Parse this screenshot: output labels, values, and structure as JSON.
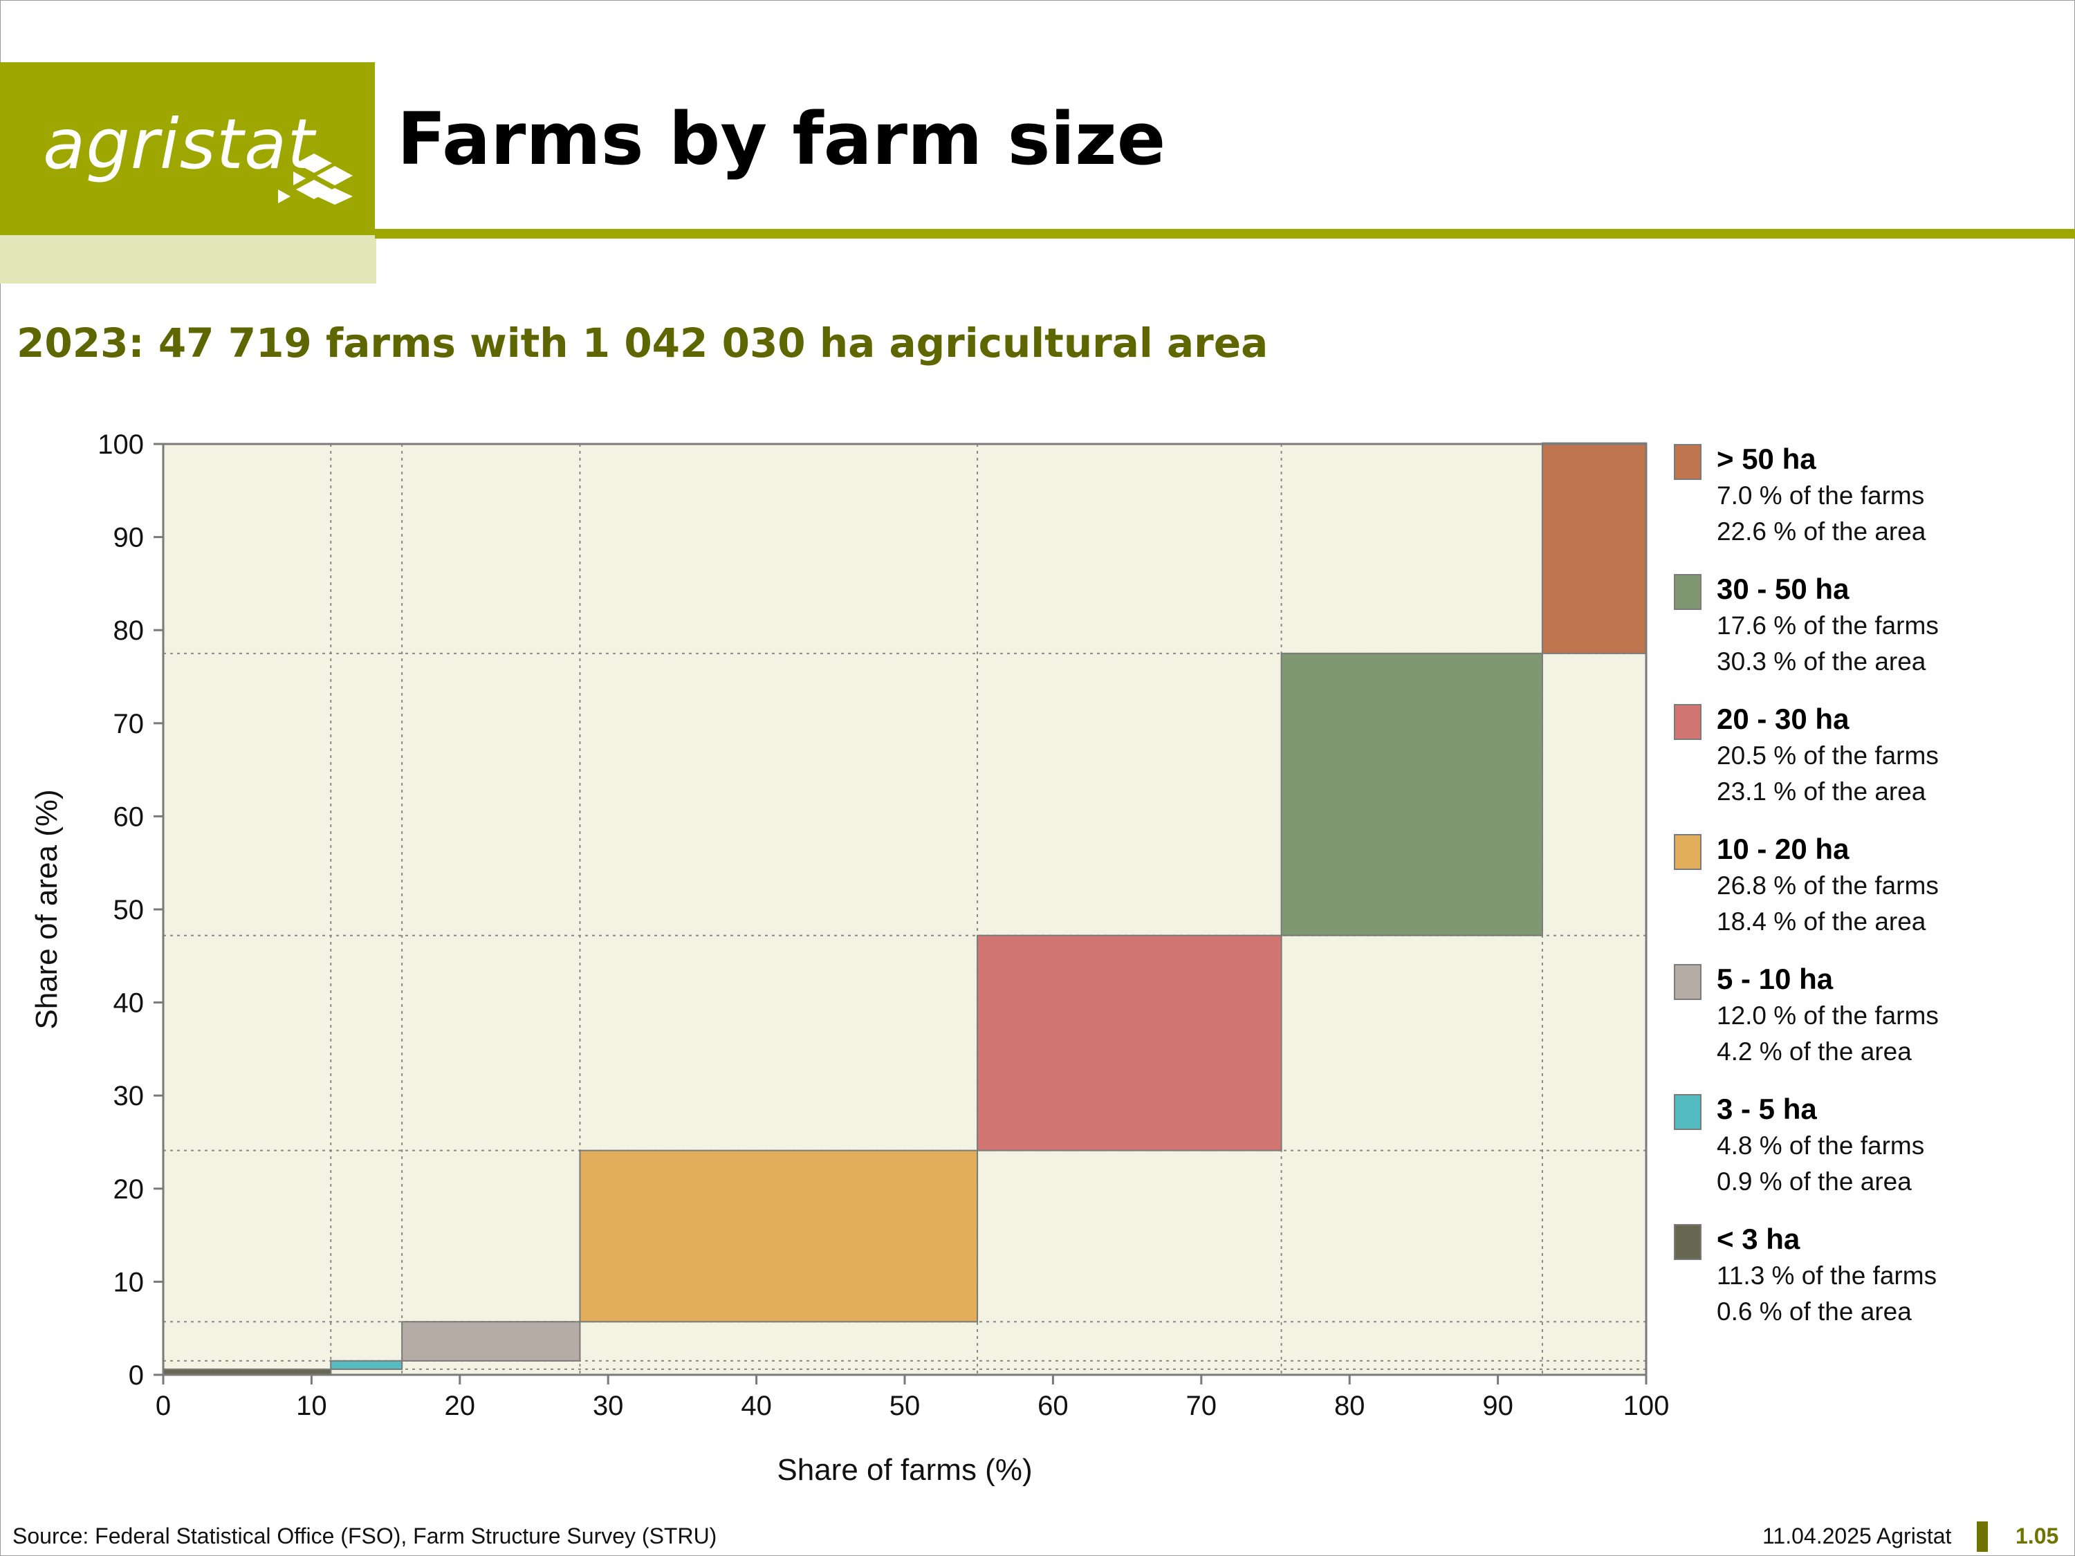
{
  "header": {
    "logo_text": "agristat",
    "title": "Farms by farm size",
    "brand_color": "#9ea600"
  },
  "subtitle": "2023: 47 719 farms with 1 042 030 ha agricultural area",
  "chart_data": {
    "type": "mosaic-step",
    "xlabel": "Share of farms (%)",
    "ylabel": "Share of area (%)",
    "xlim": [
      0,
      100
    ],
    "ylim": [
      0,
      100
    ],
    "xticks": [
      "0",
      "10",
      "20",
      "30",
      "40",
      "50",
      "60",
      "70",
      "80",
      "90",
      "100"
    ],
    "yticks": [
      "0",
      "10",
      "20",
      "30",
      "40",
      "50",
      "60",
      "70",
      "80",
      "90",
      "100"
    ],
    "grid": "dotted at category boundaries",
    "plot_background": "#f3f3e3",
    "categories": [
      {
        "name": "< 3 ha",
        "farms_pct": 11.3,
        "area_pct": 0.6,
        "color": "#676752"
      },
      {
        "name": "3 - 5 ha",
        "farms_pct": 4.8,
        "area_pct": 0.9,
        "color": "#55bcc1"
      },
      {
        "name": "5 - 10 ha",
        "farms_pct": 12.0,
        "area_pct": 4.2,
        "color": "#b5aca6"
      },
      {
        "name": "10 - 20 ha",
        "farms_pct": 26.8,
        "area_pct": 18.4,
        "color": "#e2ae5b"
      },
      {
        "name": "20 - 30 ha",
        "farms_pct": 20.5,
        "area_pct": 23.1,
        "color": "#d17672"
      },
      {
        "name": "30 - 50 ha",
        "farms_pct": 17.6,
        "area_pct": 30.3,
        "color": "#7f9872"
      },
      {
        "name": "> 50 ha",
        "farms_pct": 7.0,
        "area_pct": 22.6,
        "color": "#bf764f"
      }
    ]
  },
  "legend": [
    {
      "label": "> 50 ha",
      "line1": "7.0 % of the farms",
      "line2": "22.6 % of the area",
      "color": "#bf764f"
    },
    {
      "label": "30 - 50 ha",
      "line1": "17.6 % of the farms",
      "line2": "30.3 % of the area",
      "color": "#7f9872"
    },
    {
      "label": "20 - 30 ha",
      "line1": "20.5 % of the farms",
      "line2": "23.1 % of the area",
      "color": "#d17672"
    },
    {
      "label": "10 - 20 ha",
      "line1": "26.8 % of the farms",
      "line2": "18.4 % of the area",
      "color": "#e2ae5b"
    },
    {
      "label": "5 - 10 ha",
      "line1": "12.0 % of the farms",
      "line2": "4.2 % of the area",
      "color": "#b5aca6"
    },
    {
      "label": "3 - 5 ha",
      "line1": "4.8 % of the farms",
      "line2": "0.9 % of the area",
      "color": "#55bcc1"
    },
    {
      "label": "< 3 ha",
      "line1": "11.3 % of the farms",
      "line2": "0.6 % of the area",
      "color": "#676752"
    }
  ],
  "footer": {
    "source": "Source: Federal Statistical Office (FSO), Farm Structure Survey (STRU)",
    "date": "11.04.2025 Agristat",
    "page": "1.05"
  }
}
